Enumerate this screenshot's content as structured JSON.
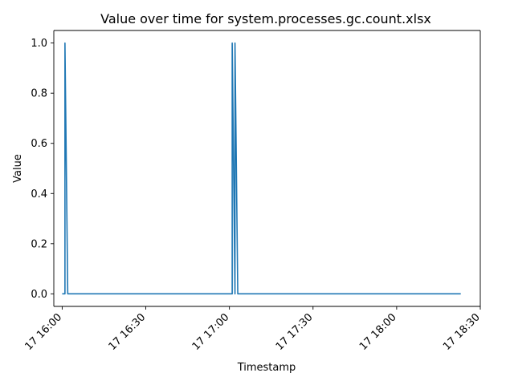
{
  "chart_data": {
    "type": "line",
    "title": "Value over time for system.processes.gc.count.xlsx",
    "xlabel": "Timestamp",
    "ylabel": "Value",
    "xlim": [
      "17 15:57",
      "18:30"
    ],
    "ylim": [
      -0.05,
      1.05
    ],
    "x_ticks": [
      "17 16:00",
      "17 16:30",
      "17 17:00",
      "17 17:30",
      "17 18:00",
      "17 18:30"
    ],
    "y_ticks": [
      "0.0",
      "0.2",
      "0.4",
      "0.6",
      "0.8",
      "1.0"
    ],
    "grid": false,
    "legend": "none",
    "series": [
      {
        "color": "#1f77b4",
        "x": [
          "16:00",
          "16:01",
          "16:01",
          "16:02",
          "16:02",
          "17:00",
          "17:01",
          "17:01",
          "17:02",
          "17:02",
          "17:03",
          "18:23"
        ],
        "y": [
          0,
          0,
          1,
          0,
          0,
          0,
          0,
          1,
          0,
          1,
          0,
          0
        ]
      }
    ]
  }
}
